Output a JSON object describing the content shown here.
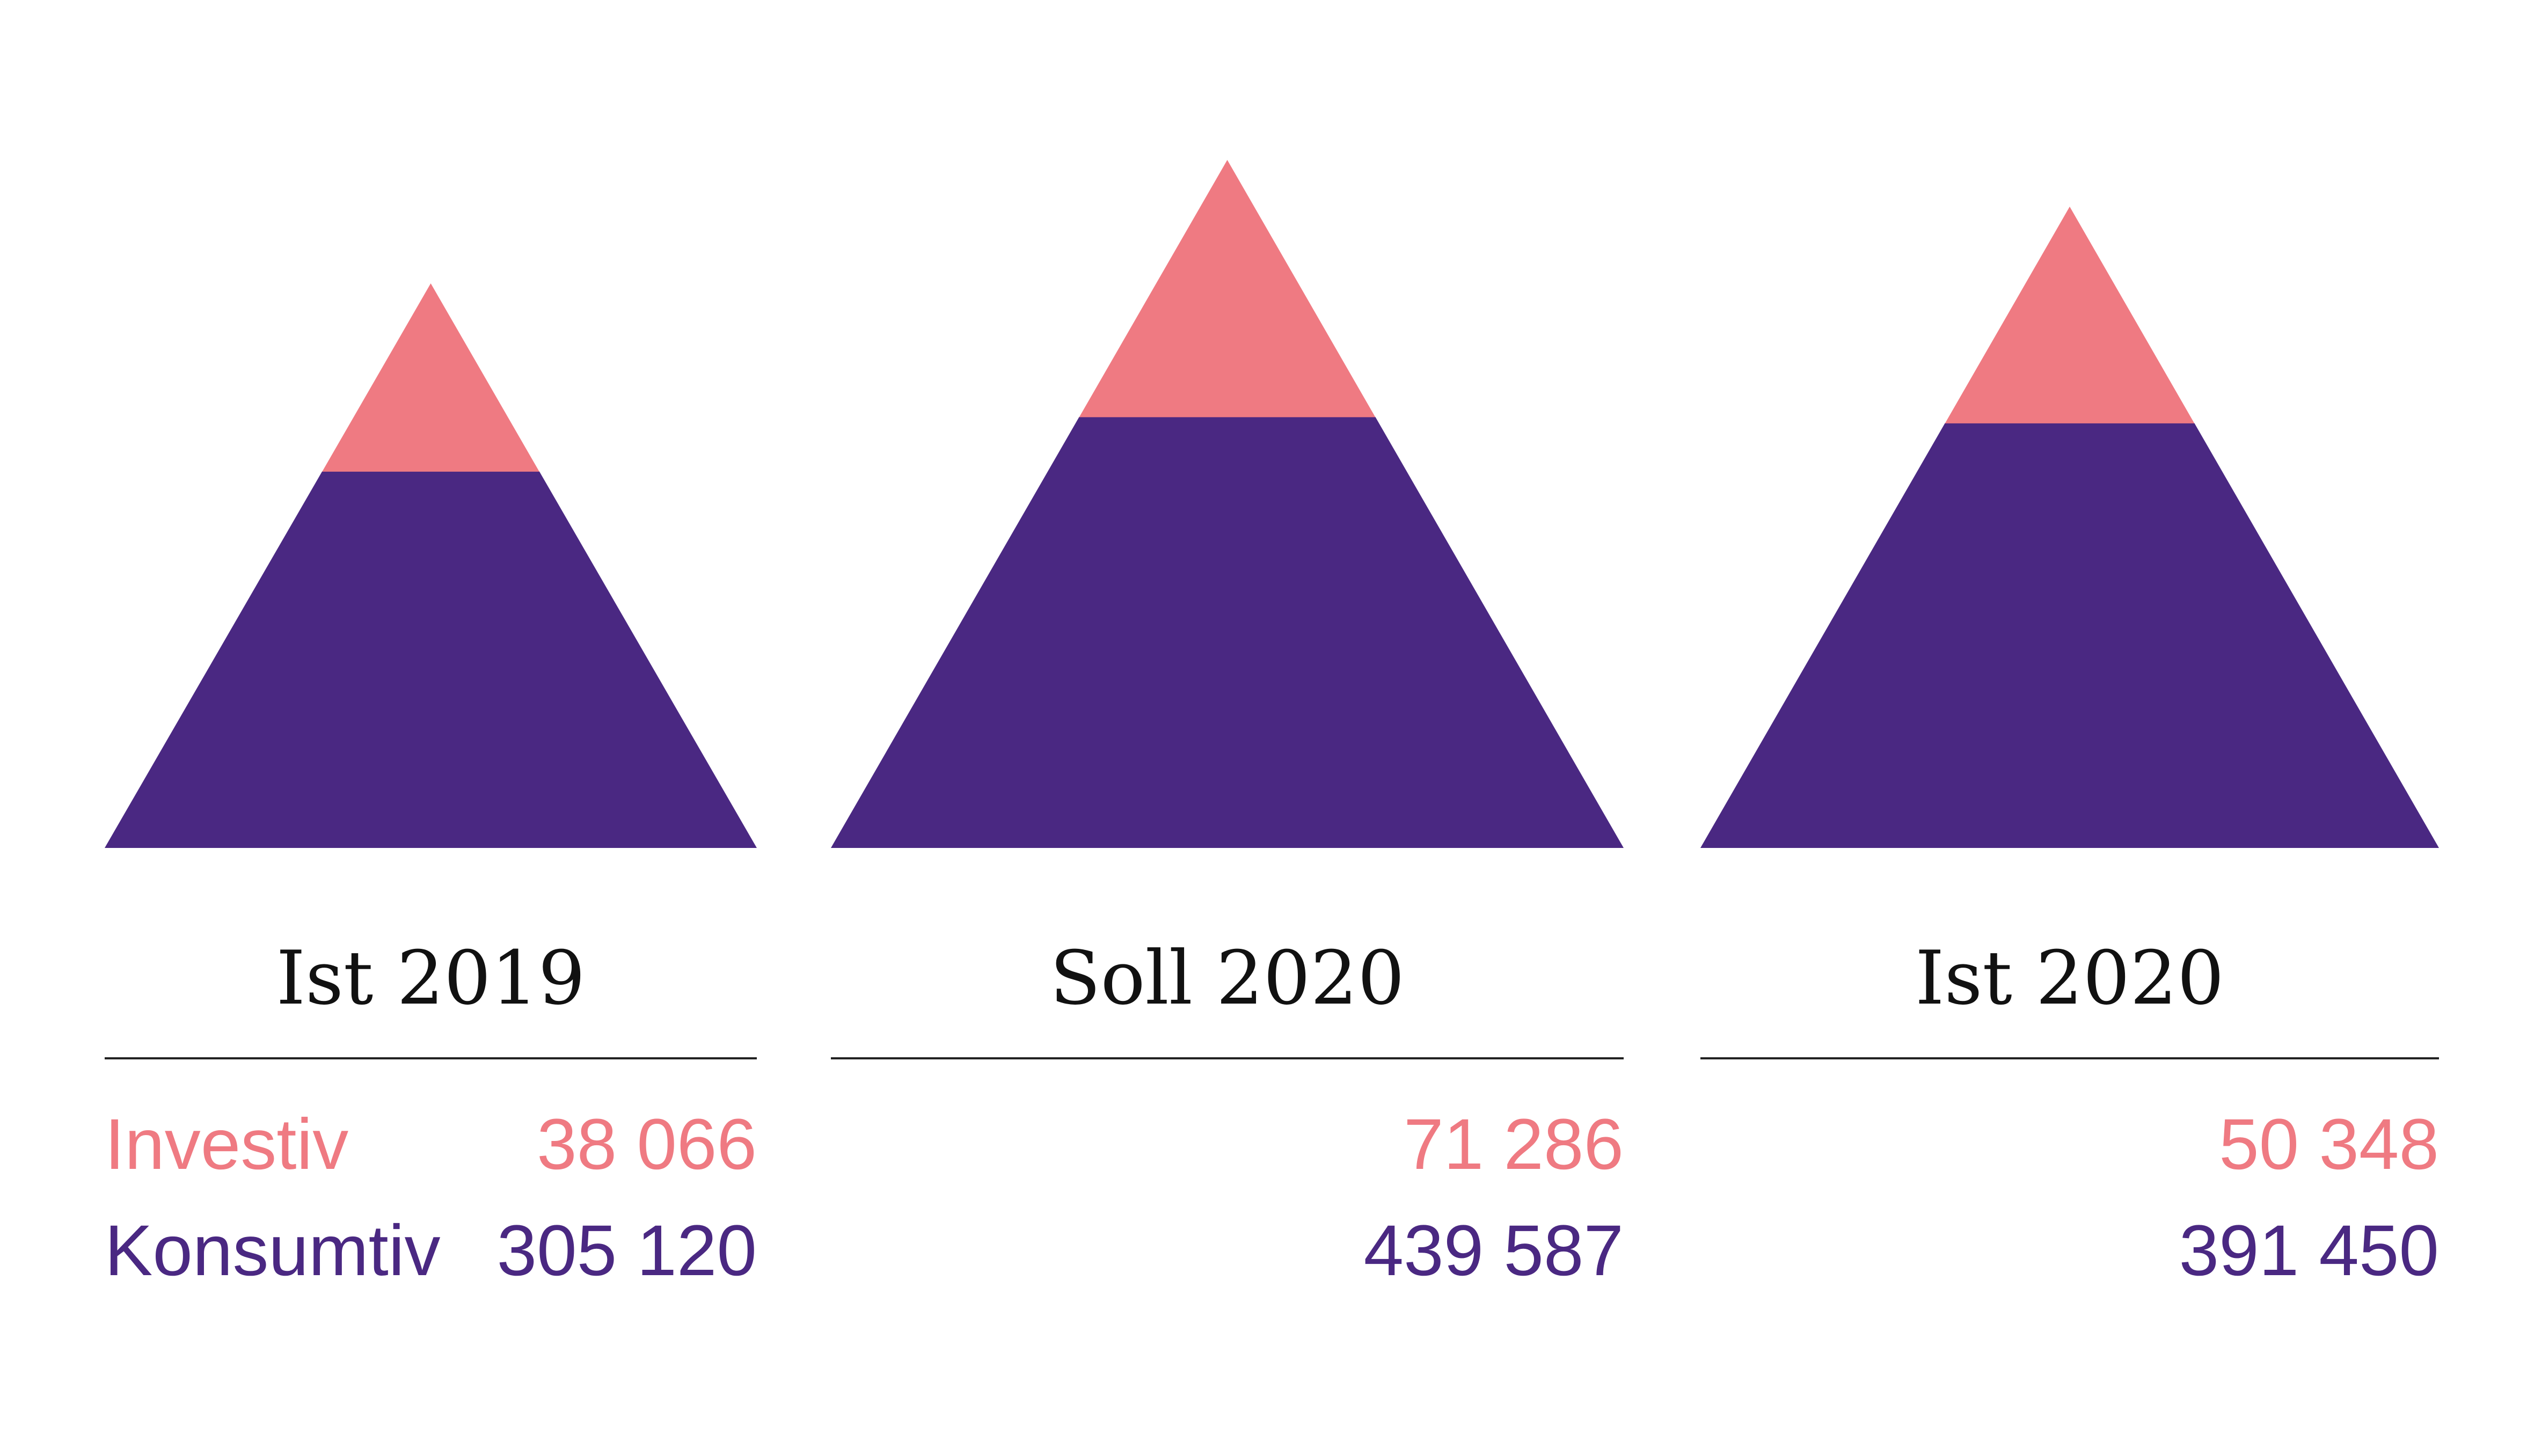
{
  "chart_data": {
    "type": "pyramid",
    "categories": [
      "Ist 2019",
      "Soll 2020",
      "Ist 2020"
    ],
    "series": [
      {
        "name": "Investiv",
        "values": [
          38066,
          71286,
          50348
        ],
        "display": [
          "38 066",
          "71 286",
          "50 348"
        ]
      },
      {
        "name": "Konsumtiv",
        "values": [
          305120,
          439587,
          391450
        ],
        "display": [
          "305 120",
          "439 587",
          "391 450"
        ]
      }
    ],
    "colors": {
      "Investiv": "#EF7A82",
      "Konsumtiv": "#4A2882",
      "title": "#111111",
      "rule": "#222222"
    }
  }
}
